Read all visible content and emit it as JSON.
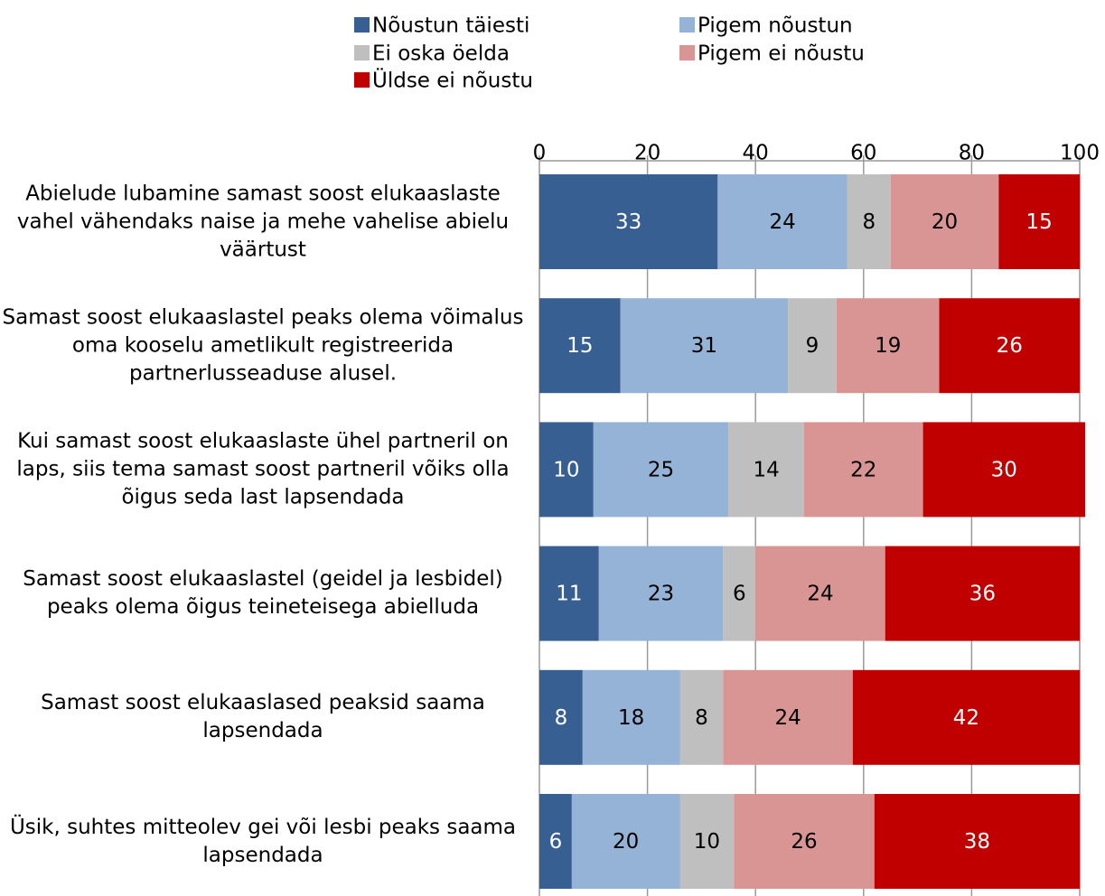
{
  "chart_data": {
    "type": "stacked-bar-horizontal",
    "categories": [
      "Abielude lubamine samast soost elukaaslaste vahel vähendaks naise ja mehe vahelise abielu väärtust",
      "Samast soost elukaaslastel peaks olema võimalus oma kooselu ametlikult registreerida partnerlusseaduse alusel.",
      "Kui samast soost elukaaslaste ühel partneril on laps, siis tema samast soost partneril võiks olla õigus seda last lapsendada",
      "Samast soost elukaaslastel (geidel ja lesbidel) peaks olema õigus teineteisega abielluda",
      "Samast soost elukaaslased peaksid saama lapsendada",
      "Üsik, suhtes mitteolev gei või lesbi peaks saama lapsendada"
    ],
    "series": [
      {
        "name": "Nõustun täiesti",
        "color": "#375f91",
        "values": [
          33,
          15,
          10,
          11,
          8,
          6
        ]
      },
      {
        "name": "Pigem nõustun",
        "color": "#95b3d7",
        "values": [
          24,
          31,
          25,
          23,
          18,
          20
        ]
      },
      {
        "name": "Ei oska öelda",
        "color": "#bfbfbf",
        "values": [
          8,
          9,
          14,
          6,
          8,
          10
        ]
      },
      {
        "name": "Pigem ei nõustu",
        "color": "#d99594",
        "values": [
          20,
          19,
          22,
          24,
          24,
          26
        ]
      },
      {
        "name": "Üldse ei nõustu",
        "color": "#c00000",
        "values": [
          15,
          26,
          30,
          36,
          42,
          38
        ]
      }
    ],
    "xlim": [
      0,
      100
    ],
    "xticks": [
      0,
      20,
      40,
      60,
      80,
      100
    ],
    "grid": true,
    "legend": "top"
  }
}
